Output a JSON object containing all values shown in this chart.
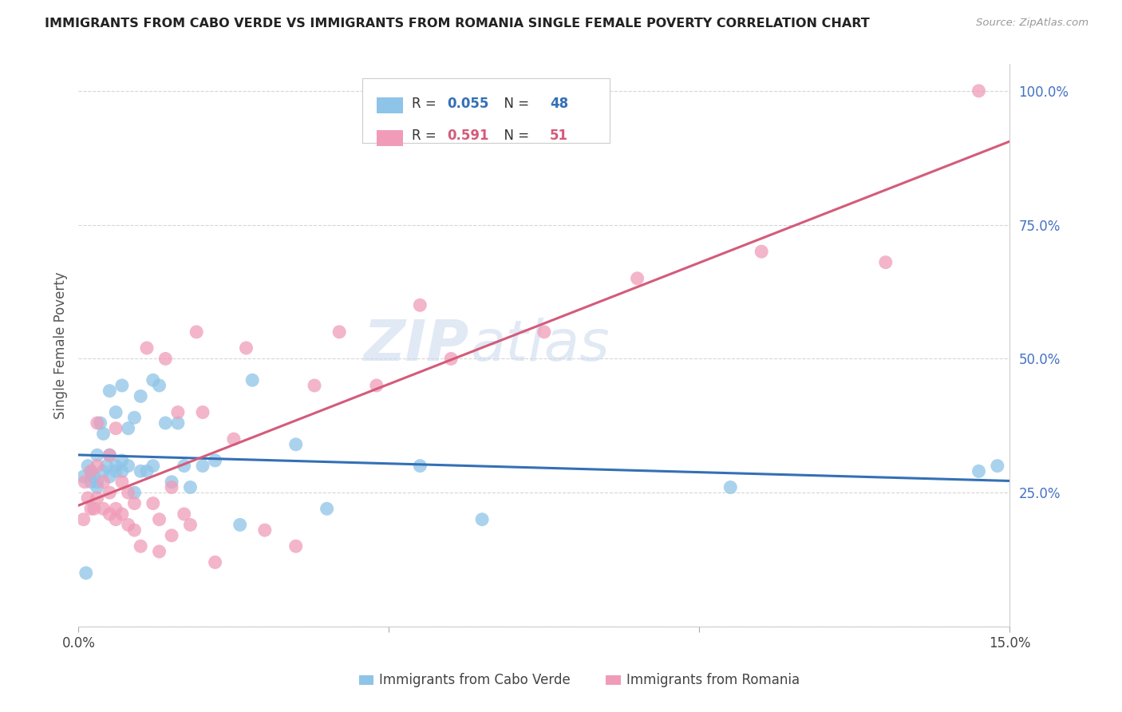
{
  "title": "IMMIGRANTS FROM CABO VERDE VS IMMIGRANTS FROM ROMANIA SINGLE FEMALE POVERTY CORRELATION CHART",
  "source": "Source: ZipAtlas.com",
  "xlabel_cabo": "Immigrants from Cabo Verde",
  "xlabel_romania": "Immigrants from Romania",
  "ylabel": "Single Female Poverty",
  "xlim": [
    0.0,
    0.15
  ],
  "ylim": [
    0.0,
    1.05
  ],
  "yticks": [
    0.0,
    0.25,
    0.5,
    0.75,
    1.0
  ],
  "ytick_labels": [
    "",
    "25.0%",
    "50.0%",
    "75.0%",
    "100.0%"
  ],
  "xticks": [
    0.0,
    0.05,
    0.1,
    0.15
  ],
  "xtick_labels": [
    "0.0%",
    "",
    "",
    "15.0%"
  ],
  "cabo_color": "#8ec4e8",
  "romania_color": "#f09cb8",
  "cabo_line_color": "#3470b5",
  "romania_line_color": "#d45b7a",
  "R_cabo": 0.055,
  "N_cabo": 48,
  "R_romania": 0.591,
  "N_romania": 51,
  "watermark_zip": "ZIP",
  "watermark_atlas": "atlas",
  "background_color": "#ffffff",
  "grid_color": "#cccccc",
  "cabo_x": [
    0.0008,
    0.0012,
    0.0015,
    0.002,
    0.002,
    0.0025,
    0.003,
    0.003,
    0.003,
    0.0035,
    0.004,
    0.004,
    0.0045,
    0.005,
    0.005,
    0.005,
    0.006,
    0.006,
    0.006,
    0.007,
    0.007,
    0.007,
    0.008,
    0.008,
    0.009,
    0.009,
    0.01,
    0.01,
    0.011,
    0.012,
    0.012,
    0.013,
    0.014,
    0.015,
    0.016,
    0.017,
    0.018,
    0.02,
    0.022,
    0.026,
    0.028,
    0.035,
    0.04,
    0.055,
    0.065,
    0.105,
    0.145,
    0.148
  ],
  "cabo_y": [
    0.28,
    0.1,
    0.3,
    0.27,
    0.29,
    0.28,
    0.27,
    0.32,
    0.26,
    0.38,
    0.29,
    0.36,
    0.3,
    0.32,
    0.28,
    0.44,
    0.29,
    0.3,
    0.4,
    0.29,
    0.31,
    0.45,
    0.3,
    0.37,
    0.25,
    0.39,
    0.29,
    0.43,
    0.29,
    0.3,
    0.46,
    0.45,
    0.38,
    0.27,
    0.38,
    0.3,
    0.26,
    0.3,
    0.31,
    0.19,
    0.46,
    0.34,
    0.22,
    0.3,
    0.2,
    0.26,
    0.29,
    0.3
  ],
  "romania_x": [
    0.0008,
    0.001,
    0.0015,
    0.002,
    0.002,
    0.0025,
    0.003,
    0.003,
    0.003,
    0.004,
    0.004,
    0.005,
    0.005,
    0.005,
    0.006,
    0.006,
    0.006,
    0.007,
    0.007,
    0.008,
    0.008,
    0.009,
    0.009,
    0.01,
    0.011,
    0.012,
    0.013,
    0.013,
    0.014,
    0.015,
    0.015,
    0.016,
    0.017,
    0.018,
    0.019,
    0.02,
    0.022,
    0.025,
    0.027,
    0.03,
    0.035,
    0.038,
    0.042,
    0.048,
    0.055,
    0.06,
    0.075,
    0.09,
    0.11,
    0.13,
    0.145
  ],
  "romania_y": [
    0.2,
    0.27,
    0.24,
    0.22,
    0.29,
    0.22,
    0.3,
    0.24,
    0.38,
    0.27,
    0.22,
    0.25,
    0.21,
    0.32,
    0.22,
    0.2,
    0.37,
    0.21,
    0.27,
    0.19,
    0.25,
    0.23,
    0.18,
    0.15,
    0.52,
    0.23,
    0.2,
    0.14,
    0.5,
    0.26,
    0.17,
    0.4,
    0.21,
    0.19,
    0.55,
    0.4,
    0.12,
    0.35,
    0.52,
    0.18,
    0.15,
    0.45,
    0.55,
    0.45,
    0.6,
    0.5,
    0.55,
    0.65,
    0.7,
    0.68,
    1.0
  ]
}
